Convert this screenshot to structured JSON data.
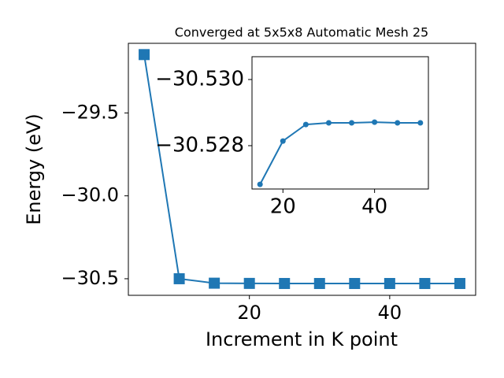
{
  "chart_data": [
    {
      "type": "line",
      "title": "Converged at 5x5x8 Automatic Mesh 25",
      "xlabel": "Increment in K point",
      "ylabel": "Energy (eV)",
      "marker": "square",
      "x": [
        5,
        10,
        15,
        20,
        25,
        30,
        35,
        40,
        45,
        50
      ],
      "series": [
        {
          "color": "#1f77b4",
          "values": [
            -29.148,
            -30.5,
            -30.52683,
            -30.52814,
            -30.52864,
            -30.52869,
            -30.52869,
            -30.52871,
            -30.52869,
            -30.52869
          ]
        }
      ],
      "xlim": [
        2.75,
        52.25
      ],
      "ylim": [
        -30.6,
        -29.08
      ],
      "xticks": [
        20,
        40
      ],
      "yticks": [
        {
          "value": -30.5,
          "label": "−30.5"
        },
        {
          "value": -30.0,
          "label": "−30.0"
        },
        {
          "value": -29.5,
          "label": "−29.5"
        }
      ]
    },
    {
      "type": "line",
      "marker": "circle",
      "x": [
        15,
        20,
        25,
        30,
        35,
        40,
        45,
        50
      ],
      "series": [
        {
          "color": "#1f77b4",
          "values": [
            -30.52683,
            -30.52814,
            -30.52864,
            -30.52869,
            -30.52869,
            -30.52871,
            -30.52869,
            -30.52869
          ]
        }
      ],
      "xlim": [
        13.25,
        51.75
      ],
      "ylim": [
        -30.52669,
        -30.53069
      ],
      "xticks": [
        20,
        40
      ],
      "yticks": [
        {
          "value": -30.528,
          "label": "−30.528"
        },
        {
          "value": -30.53,
          "label": "−30.530"
        }
      ]
    }
  ]
}
